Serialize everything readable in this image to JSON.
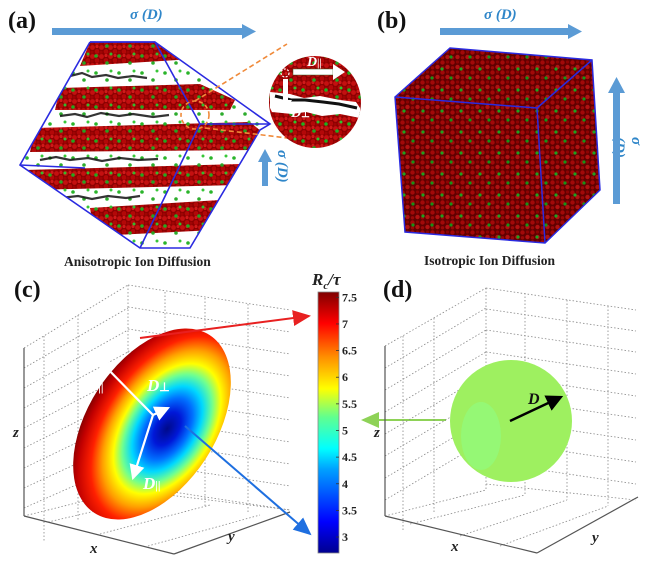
{
  "panels": {
    "a": {
      "label": "(a)",
      "caption": "Anisotropic Ion Diffusion",
      "arrow_horizontal_label": "σ (D)",
      "arrow_vertical_label": "σ (D)",
      "inset": {
        "parallel_label": "D||",
        "perp_label": "D⊥"
      }
    },
    "b": {
      "label": "(b)",
      "caption": "Isotropic Ion Diffusion",
      "arrow_horizontal_label": "σ (D)",
      "arrow_vertical_label": "σ (D)"
    },
    "c": {
      "label": "(c)",
      "axes": {
        "x": "x",
        "y": "y",
        "z": "z"
      },
      "vectors": {
        "parallel_top": "D||",
        "perp": "D⊥",
        "parallel_bottom": "D||"
      }
    },
    "d": {
      "label": "(d)",
      "axes": {
        "x": "x",
        "y": "y",
        "z": "z"
      },
      "vector": "D"
    }
  },
  "colorbar": {
    "title": "Rc/τ",
    "title_main": "R",
    "title_sub": "c",
    "title_rest": "/τ",
    "ticks": [
      "7.5",
      "7",
      "6.5",
      "6",
      "5.5",
      "5",
      "4.5",
      "4",
      "3.5",
      "3"
    ],
    "range": [
      2.7,
      7.6
    ]
  },
  "colors": {
    "sigma_arrow": "#5b9bd5",
    "sigma_text": "#2f86c9",
    "box_edge": "#2a2ae0",
    "atom_red": "#b00000",
    "atom_green": "#1fa81f",
    "callout_orange": "#f08a3a",
    "pointer_red": "#e82020",
    "pointer_blue": "#1e6fe0",
    "pointer_green": "#8ed257",
    "sphere_green": "#9ef060"
  }
}
